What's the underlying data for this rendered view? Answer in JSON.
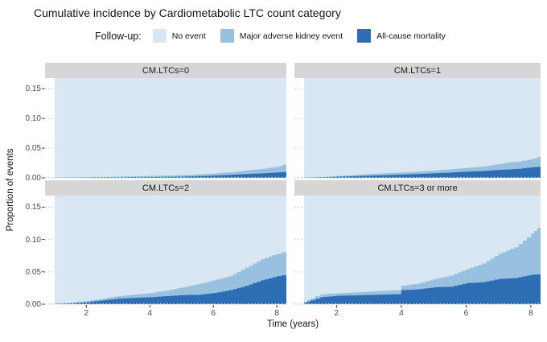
{
  "title": "Cumulative incidence by Cardiometabolic LTC count category",
  "legend": {
    "title": "Follow-up:",
    "items": [
      {
        "label": "No event",
        "color": "#d9e7f5"
      },
      {
        "label": "Major adverse kidney event",
        "color": "#98c1e0"
      },
      {
        "label": "All-cause mortality",
        "color": "#2c6db4"
      }
    ]
  },
  "axes": {
    "x_label": "Time (years)",
    "y_label": "Proportion of events",
    "x_ticks": [
      2,
      4,
      6,
      8
    ],
    "y_ticks": [
      {
        "value": 0.15,
        "label": "0.15"
      },
      {
        "value": 0.1,
        "label": "0.10"
      },
      {
        "value": 0.05,
        "label": "0.05"
      },
      {
        "value": 0.0,
        "label": "0.00"
      }
    ]
  },
  "chart_data": {
    "type": "area",
    "stacked": true,
    "step_curves": true,
    "x_domain": [
      0.7,
      8.3
    ],
    "y_domain": [
      0,
      0.168
    ],
    "x_data_start": 1.0,
    "x_data_end": 8.3,
    "grid_values": [
      0.0,
      0.05,
      0.1,
      0.15
    ],
    "colors": {
      "no_event": "#d9e7f5",
      "make": "#98c1e0",
      "mortality": "#2c6db4",
      "grid": "#bdbdbd",
      "baseline_dots": "#bcd4ec",
      "tick": "#333333"
    },
    "series_order": [
      "All-cause mortality (bottom)",
      "Major adverse kidney event (middle)",
      "No event (remainder to top)"
    ],
    "facets": [
      {
        "label": "CM.LTCs=0",
        "points": [
          [
            1,
            0.0002,
            0.0004
          ],
          [
            1.5,
            0.0003,
            0.0007
          ],
          [
            2,
            0.0005,
            0.001
          ],
          [
            2.5,
            0.0007,
            0.0015
          ],
          [
            3,
            0.001,
            0.002
          ],
          [
            3.5,
            0.0012,
            0.0026
          ],
          [
            4,
            0.0014,
            0.0032
          ],
          [
            4.5,
            0.0017,
            0.0038
          ],
          [
            5,
            0.002,
            0.0045
          ],
          [
            5.5,
            0.0028,
            0.0058
          ],
          [
            6,
            0.0037,
            0.0073
          ],
          [
            6.5,
            0.005,
            0.0095
          ],
          [
            7,
            0.0064,
            0.0123
          ],
          [
            7.5,
            0.0075,
            0.015
          ],
          [
            8,
            0.0091,
            0.0187
          ],
          [
            8.2,
            0.0097,
            0.022
          ],
          [
            8.3,
            0.0102,
            0.027
          ]
        ]
      },
      {
        "label": "CM.LTCs=1",
        "points": [
          [
            1,
            0.0003,
            0.0006
          ],
          [
            1.5,
            0.0008,
            0.0015
          ],
          [
            2,
            0.0018,
            0.0032
          ],
          [
            2.5,
            0.0027,
            0.0048
          ],
          [
            3,
            0.0037,
            0.0064
          ],
          [
            3.5,
            0.0046,
            0.0078
          ],
          [
            4,
            0.0055,
            0.0091
          ],
          [
            4.5,
            0.0066,
            0.0107
          ],
          [
            5,
            0.0078,
            0.0123
          ],
          [
            5.5,
            0.009,
            0.0145
          ],
          [
            6,
            0.0105,
            0.0168
          ],
          [
            6.5,
            0.0115,
            0.019
          ],
          [
            7,
            0.0136,
            0.0232
          ],
          [
            7.3,
            0.0143,
            0.026
          ],
          [
            7.6,
            0.0152,
            0.0275
          ],
          [
            8,
            0.0177,
            0.0314
          ],
          [
            8.2,
            0.0185,
            0.035
          ],
          [
            8.3,
            0.019,
            0.042
          ]
        ]
      },
      {
        "label": "CM.LTCs=2",
        "points": [
          [
            1,
            0.0005,
            0.001
          ],
          [
            1.5,
            0.0012,
            0.0022
          ],
          [
            2,
            0.003,
            0.005
          ],
          [
            2.4,
            0.0055,
            0.008
          ],
          [
            3,
            0.0085,
            0.0125
          ],
          [
            3.5,
            0.0098,
            0.0148
          ],
          [
            4,
            0.0108,
            0.0173
          ],
          [
            4.5,
            0.0125,
            0.021
          ],
          [
            5,
            0.014,
            0.026
          ],
          [
            5.5,
            0.0145,
            0.031
          ],
          [
            6,
            0.0173,
            0.0369
          ],
          [
            6.5,
            0.0217,
            0.0434
          ],
          [
            7,
            0.0283,
            0.0565
          ],
          [
            7.5,
            0.0369,
            0.0695
          ],
          [
            8,
            0.0434,
            0.078
          ],
          [
            8.3,
            0.046,
            0.0825
          ]
        ]
      },
      {
        "label": "CM.LTCs=3 or more",
        "points": [
          [
            1,
            0.002,
            0.004
          ],
          [
            1.2,
            0.006,
            0.009
          ],
          [
            1.5,
            0.0108,
            0.0152
          ],
          [
            2,
            0.013,
            0.017
          ],
          [
            2.5,
            0.0135,
            0.018
          ],
          [
            3,
            0.0143,
            0.0195
          ],
          [
            3.5,
            0.015,
            0.021
          ],
          [
            3.95,
            0.0155,
            0.022
          ],
          [
            4,
            0.0217,
            0.0283
          ],
          [
            4.5,
            0.023,
            0.032
          ],
          [
            5,
            0.026,
            0.039
          ],
          [
            5.5,
            0.027,
            0.044
          ],
          [
            6,
            0.0326,
            0.0543
          ],
          [
            6.5,
            0.034,
            0.063
          ],
          [
            7,
            0.039,
            0.078
          ],
          [
            7.5,
            0.0405,
            0.088
          ],
          [
            8,
            0.0456,
            0.1086
          ],
          [
            8.2,
            0.046,
            0.118
          ],
          [
            8.3,
            0.048,
            0.131
          ]
        ]
      }
    ],
    "point_format": "[time_years, cum_mortality, cum_mortality_plus_make]"
  }
}
